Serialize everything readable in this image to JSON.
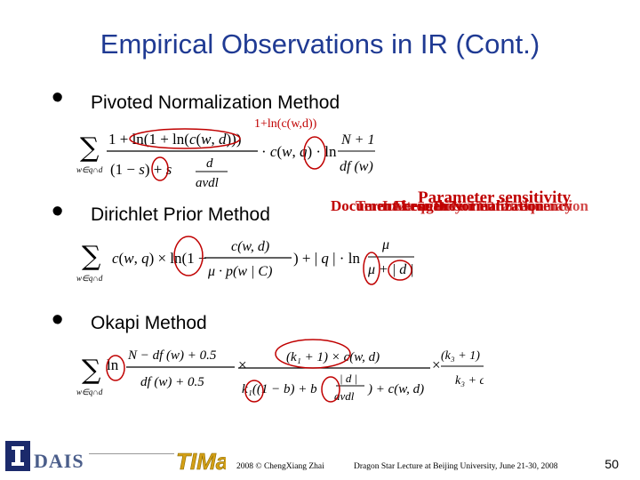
{
  "slide": {
    "title": "Empirical Observations in IR (Cont.)",
    "bullets": [
      {
        "label": "Pivoted Normalization Method"
      },
      {
        "label": "Dirichlet Prior Method"
      },
      {
        "label": "Okapi Method"
      }
    ],
    "annotations": {
      "tf_label": "1+ln(c(w,d))",
      "overlap_a": "Parameter sensitivity",
      "overlap_b": "Document Length Normalization",
      "overlap_c": "Term Frequency",
      "overlap_d": "Inverse Document Frequency",
      "overlap_e": "Alternative TF transformation"
    },
    "footer": {
      "copyright": "2008 © ChengXiang Zhai",
      "lecture": "Dragon Star Lecture at Beijing University, June 21-30, 2008",
      "page": "50"
    },
    "colors": {
      "title": "#1f3a93",
      "annotation": "#c00000"
    }
  }
}
